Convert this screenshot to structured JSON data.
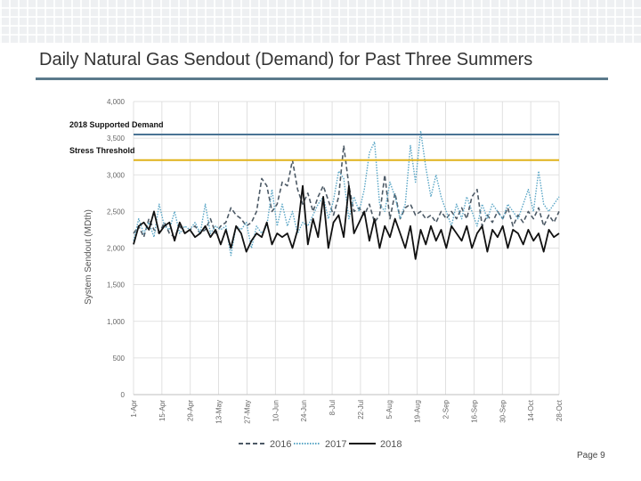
{
  "slide": {
    "title": "Daily Natural Gas Sendout (Demand) for Past Three Summers",
    "page_number": "Page 9"
  },
  "chart_data": {
    "type": "line",
    "title": "",
    "xlabel": "",
    "ylabel": "System Sendout (MDth)",
    "ylim": [
      0,
      4000
    ],
    "y_ticks": [
      "0",
      "500",
      "1,000",
      "1,500",
      "2,000",
      "2,500",
      "3,000",
      "3,500",
      "4,000"
    ],
    "x_tick_labels": [
      "1-Apr",
      "15-Apr",
      "29-Apr",
      "13-May",
      "27-May",
      "10-Jun",
      "24-Jun",
      "8-Jul",
      "22-Jul",
      "5-Aug",
      "19-Aug",
      "2-Sep",
      "16-Sep",
      "30-Sep",
      "14-Oct",
      "28-Oct"
    ],
    "grid": true,
    "legend_position": "bottom",
    "reference_lines": [
      {
        "label": "2018 Supported Demand",
        "value": 3550,
        "color": "#4a7394"
      },
      {
        "label": "Stress Threshold",
        "value": 3200,
        "color": "#e0b21a"
      }
    ],
    "x_start_label": "1-Apr",
    "x_step_days": 7,
    "series": [
      {
        "name": "2016",
        "style": "dashed",
        "color": "#4d5a66",
        "values": [
          2200,
          2300,
          2150,
          2400,
          2250,
          2200,
          2350,
          2200,
          2150,
          2300,
          2200,
          2250,
          2300,
          2200,
          2250,
          2400,
          2200,
          2300,
          2350,
          2550,
          2450,
          2400,
          2300,
          2350,
          2500,
          2950,
          2850,
          2500,
          2600,
          2900,
          2850,
          3200,
          2800,
          2600,
          2750,
          2500,
          2700,
          2850,
          2650,
          2450,
          2700,
          3400,
          2850,
          2500,
          2550,
          2450,
          2600,
          2350,
          2450,
          3000,
          2400,
          2750,
          2400,
          2550,
          2600,
          2450,
          2500,
          2400,
          2450,
          2350,
          2500,
          2400,
          2500,
          2400,
          2550,
          2400,
          2700,
          2800,
          2300,
          2450,
          2350,
          2500,
          2400,
          2550,
          2300,
          2450,
          2350,
          2500,
          2400,
          2550,
          2300,
          2450,
          2350,
          2500
        ]
      },
      {
        "name": "2017",
        "style": "dotted",
        "color": "#5aa6c6",
        "values": [
          2100,
          2400,
          2200,
          2350,
          2150,
          2600,
          2300,
          2250,
          2500,
          2200,
          2300,
          2250,
          2350,
          2200,
          2600,
          2200,
          2300,
          2250,
          2300,
          1900,
          2300,
          2250,
          2350,
          2000,
          2300,
          2200,
          2300,
          2800,
          2300,
          2600,
          2300,
          2500,
          2200,
          2350,
          2300,
          2450,
          2600,
          2700,
          2400,
          2650,
          3050,
          2950,
          2400,
          2700,
          2500,
          2800,
          3300,
          3450,
          2600,
          2500,
          2900,
          2700,
          2400,
          2600,
          3400,
          2900,
          3600,
          3100,
          2700,
          3000,
          2700,
          2500,
          2300,
          2600,
          2400,
          2700,
          2500,
          2300,
          2600,
          2400,
          2600,
          2500,
          2400,
          2600,
          2500,
          2400,
          2600,
          2800,
          2500,
          3050,
          2600,
          2500,
          2600,
          2700
        ]
      },
      {
        "name": "2018",
        "style": "solid",
        "color": "#111111",
        "values": [
          2050,
          2300,
          2350,
          2250,
          2500,
          2200,
          2300,
          2350,
          2100,
          2350,
          2200,
          2250,
          2150,
          2200,
          2300,
          2150,
          2250,
          2050,
          2250,
          2000,
          2300,
          2200,
          1950,
          2100,
          2200,
          2150,
          2350,
          2050,
          2200,
          2150,
          2200,
          2000,
          2250,
          2850,
          2050,
          2400,
          2150,
          2700,
          2000,
          2350,
          2450,
          2150,
          2850,
          2200,
          2350,
          2500,
          2100,
          2400,
          2000,
          2300,
          2150,
          2400,
          2200,
          2000,
          2300,
          1850,
          2250,
          2050,
          2300,
          2100,
          2250,
          2000,
          2300,
          2200,
          2100,
          2300,
          2000,
          2200,
          2300,
          1950,
          2250,
          2150,
          2300,
          2000,
          2250,
          2200,
          2050,
          2250,
          2100,
          2200,
          1950,
          2250,
          2150,
          2200
        ]
      }
    ]
  }
}
